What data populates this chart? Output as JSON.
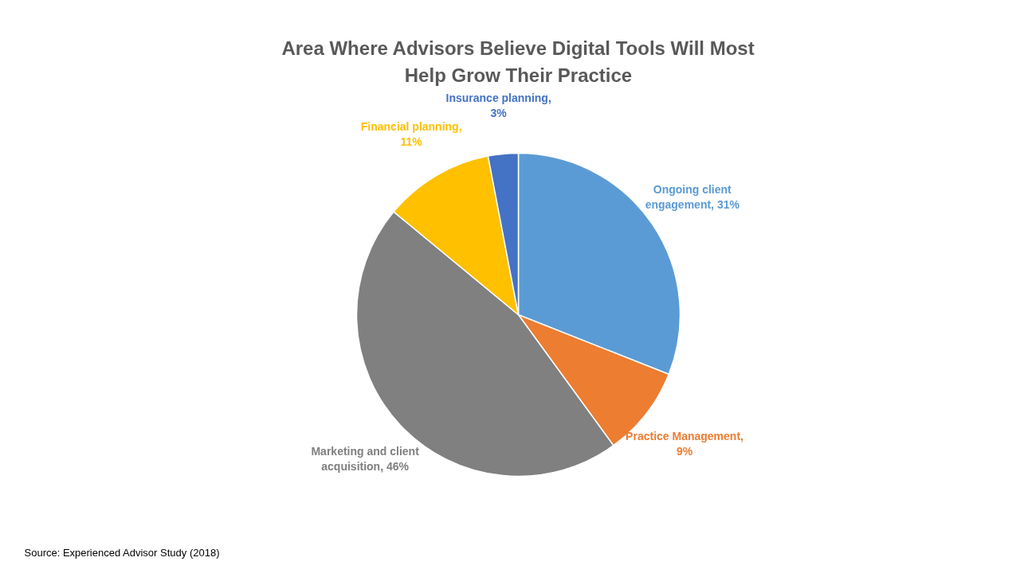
{
  "chart_data": {
    "type": "pie",
    "title": "Area Where Advisors Believe Digital Tools Will Most\nHelp Grow Their Practice",
    "categories": [
      "Ongoing client engagement",
      "Practice Management",
      "Marketing and client acquisition",
      "Financial planning",
      "Insurance planning"
    ],
    "values": [
      31,
      9,
      46,
      11,
      3
    ],
    "colors": [
      "#5b9bd5",
      "#ed7d31",
      "#808080",
      "#ffc000",
      "#4472c4"
    ],
    "value_labels": [
      ", 31%",
      ", 9%",
      ", 46%",
      ", 11%",
      ", 3%"
    ],
    "annotations": [
      "Source: Experienced Advisor Study (2018)"
    ]
  }
}
